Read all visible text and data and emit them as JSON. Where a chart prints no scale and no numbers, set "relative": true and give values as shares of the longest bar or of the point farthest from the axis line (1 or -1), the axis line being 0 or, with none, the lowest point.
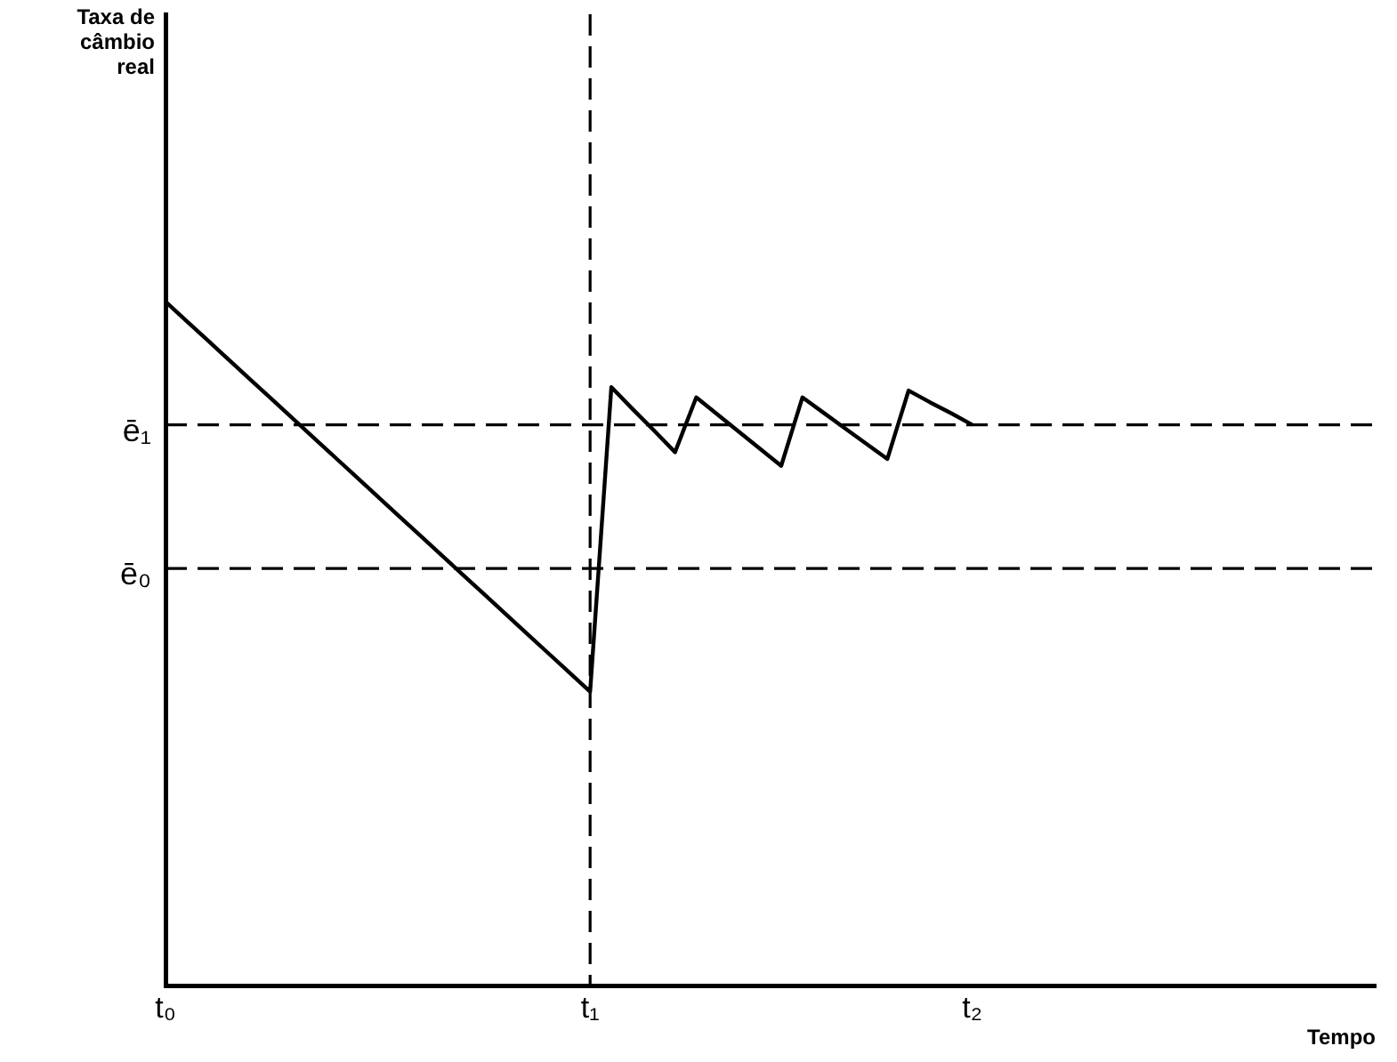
{
  "chart_data": {
    "type": "line",
    "xlabel": "Tempo",
    "annotations": [
      "Taxa de câmbio real"
    ],
    "relative": true,
    "marker": "none",
    "categories": [
      "t₀",
      null,
      null,
      null,
      null,
      null,
      null,
      null,
      null,
      null,
      null,
      null,
      null,
      null,
      null,
      null,
      null,
      null,
      null,
      null,
      "t₁",
      null,
      null,
      null,
      null,
      null,
      null,
      null,
      null,
      null,
      null,
      null,
      null,
      null,
      null,
      null,
      null,
      null,
      "t₂",
      null,
      null,
      null,
      null,
      null,
      null,
      null,
      null,
      null,
      null,
      null,
      null,
      null,
      null,
      null,
      null,
      null,
      null,
      null
    ],
    "series": [
      {
        "color": "#000000",
        "values": [
          1,
          0.9715,
          0.943,
          0.9145,
          0.886,
          0.8575,
          0.829,
          0.8005,
          0.772,
          0.7435,
          0.715,
          0.6865,
          0.658,
          0.6295,
          0.601,
          0.5725,
          0.544,
          0.5155,
          0.487,
          0.4585,
          0.43,
          0.875,
          0.843,
          0.812,
          0.78,
          0.86,
          0.835,
          0.81,
          0.785,
          0.76,
          0.86,
          0.8375,
          0.815,
          0.7925,
          0.77,
          0.87,
          0.853,
          0.837,
          0.82,
          null,
          null,
          null,
          null,
          null,
          null,
          null,
          null,
          null,
          null,
          null,
          null,
          null,
          null,
          null,
          null,
          null,
          null,
          null
        ]
      }
    ],
    "ref_lines": [
      {
        "axis": "y",
        "value": 0.82,
        "label": "ē₁",
        "line_style": "dashed"
      },
      {
        "axis": "y",
        "value": 0.61,
        "label": "ē₀",
        "line_style": "dashed"
      },
      {
        "axis": "x",
        "value": "t₁",
        "label": null,
        "line_style": "dashed"
      }
    ]
  }
}
